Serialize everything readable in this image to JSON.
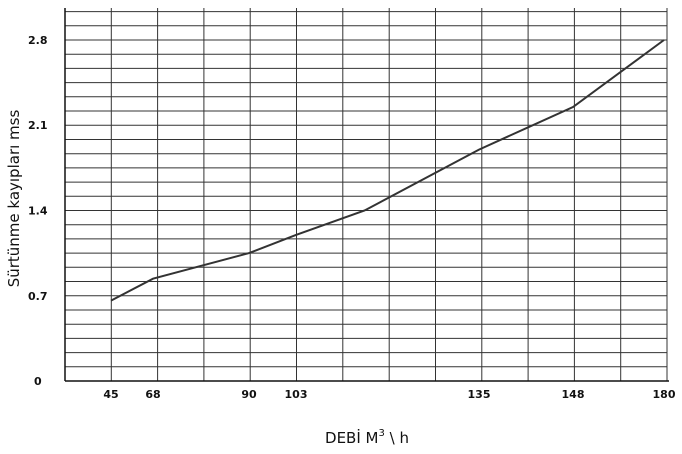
{
  "chart_data": {
    "type": "line",
    "title": "",
    "xlabel": "DEBİ  M",
    "xlabel_sup": "3",
    "xlabel_suffix": " \\ h",
    "ylabel": "Sürtünme kayıpları   mss",
    "x_ticks": [
      "45",
      "68",
      "90",
      "103",
      "135",
      "148",
      "180"
    ],
    "x_tick_values": [
      45,
      68,
      90,
      103,
      135,
      148,
      180
    ],
    "y_ticks": [
      "0",
      "0.7",
      "1.4",
      "2.1",
      "2.8"
    ],
    "y_tick_values": [
      0,
      0.7,
      1.4,
      2.1,
      2.8
    ],
    "grid": true,
    "series": [
      {
        "name": "",
        "x": [
          45,
          68,
          90,
          103,
          115,
          135,
          148,
          180
        ],
        "y": [
          0.66,
          0.84,
          1.05,
          1.2,
          1.4,
          1.9,
          2.25,
          2.8
        ]
      }
    ]
  },
  "colors": {
    "grid": "#333333",
    "line": "#333333",
    "background": "#ffffff"
  }
}
